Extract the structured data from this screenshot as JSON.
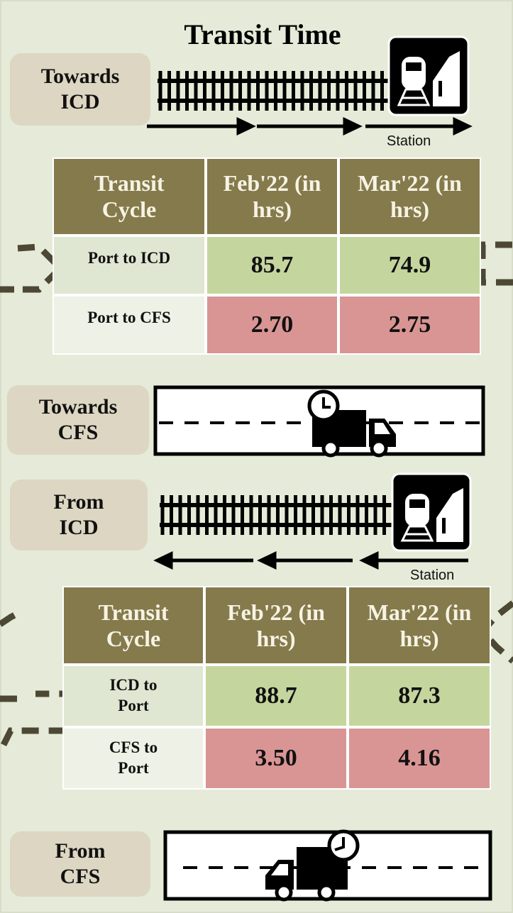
{
  "title": "Transit Time",
  "sections": [
    {
      "label": "Towards ICD",
      "station_label": "Station",
      "table": {
        "header": [
          "Transit Cycle",
          "Feb'22 (in hrs)",
          "Mar'22 (in hrs)"
        ],
        "rows": [
          [
            "Port to ICD",
            "85.7",
            "74.9"
          ],
          [
            "Port to CFS",
            "2.70",
            "2.75"
          ]
        ]
      }
    },
    {
      "label": "Towards CFS"
    },
    {
      "label": "From ICD",
      "station_label": "Station",
      "table": {
        "header": [
          "Transit Cycle",
          "Feb'22 (in hrs)",
          "Mar'22 (in hrs)"
        ],
        "rows": [
          [
            "ICD to Port",
            "88.7",
            "87.3"
          ],
          [
            "CFS to Port",
            "3.50",
            "4.16"
          ]
        ]
      }
    },
    {
      "label": "From CFS"
    }
  ]
}
